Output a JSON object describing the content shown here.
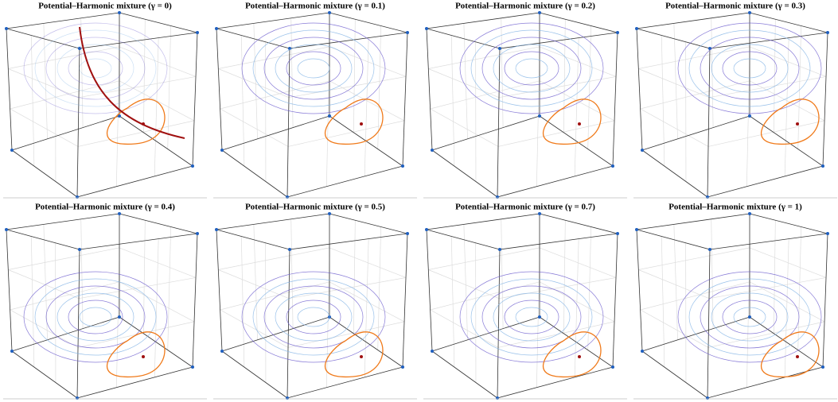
{
  "panels": [
    {
      "title": "Potential–Harmonic mixture (γ = 0)"
    },
    {
      "title": "Potential–Harmonic mixture (γ = 0.1)"
    },
    {
      "title": "Potential–Harmonic mixture (γ = 0.2)"
    },
    {
      "title": "Potential–Harmonic mixture (γ = 0.3)"
    },
    {
      "title": "Potential–Harmonic mixture (γ = 0.4)"
    },
    {
      "title": "Potential–Harmonic mixture (γ = 0.5)"
    },
    {
      "title": "Potential–Harmonic mixture (γ = 0.7)"
    },
    {
      "title": "Potential–Harmonic mixture (γ = 1)"
    }
  ]
}
